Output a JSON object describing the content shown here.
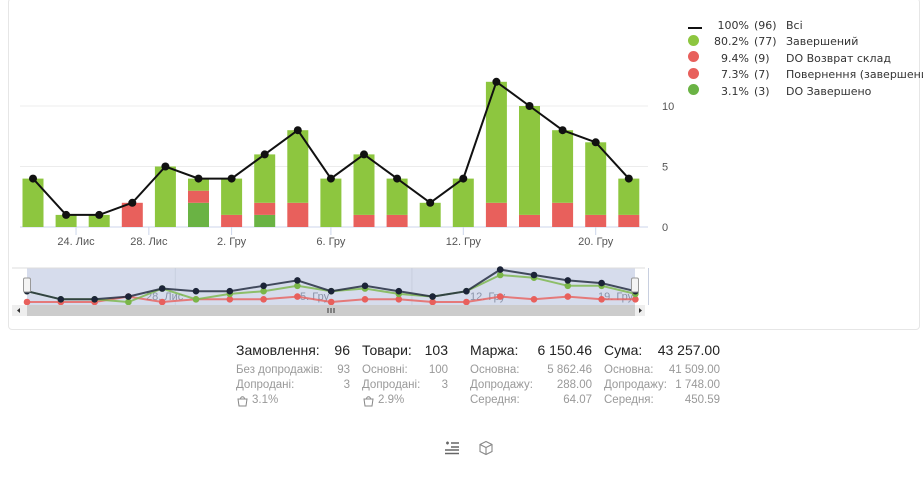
{
  "chart_data": {
    "type": "bar",
    "stacked": true,
    "x_tick_labels": [
      "24. Лис",
      "28. Лис",
      "2. Гру",
      "6. Гру",
      "12. Гру",
      "20. Гру"
    ],
    "y_tick_labels": [
      "0",
      "5",
      "10"
    ],
    "ylim": [
      0,
      13
    ],
    "grid": true,
    "legend_placement": "right",
    "series": [
      {
        "name": "Завершений",
        "color": "#8dc63f",
        "values": [
          4,
          1,
          1,
          0,
          5,
          1,
          3,
          4,
          6,
          4,
          5,
          3,
          2,
          4,
          10,
          9,
          6,
          6,
          3
        ]
      },
      {
        "name": "DO Завершено",
        "color": "#6ab344",
        "values": [
          0,
          0,
          0,
          0,
          0,
          2,
          0,
          1,
          0,
          0,
          0,
          0,
          0,
          0,
          0,
          0,
          0,
          0,
          0
        ]
      },
      {
        "name": "DO Возврат склад / Повернення (завершений)",
        "color": "#e8605c",
        "values": [
          0,
          0,
          0,
          2,
          0,
          1,
          1,
          1,
          2,
          0,
          1,
          1,
          0,
          0,
          2,
          1,
          2,
          1,
          1
        ]
      }
    ],
    "total_line": {
      "name": "Всі",
      "color": "#111111",
      "values": [
        4,
        1,
        1,
        2,
        5,
        4,
        4,
        6,
        8,
        4,
        6,
        4,
        2,
        4,
        12,
        10,
        8,
        7,
        4
      ]
    },
    "navigator_tick_labels": [
      "28. Лис",
      "5. Гру",
      "12. Гру",
      "19. Гру"
    ]
  },
  "legend": [
    {
      "pct": "100%",
      "count": "(96)",
      "label": "Всі",
      "color": "#111111",
      "type": "line"
    },
    {
      "pct": "80.2%",
      "count": "(77)",
      "label": "Завершений",
      "color": "#8dc63f",
      "type": "dot"
    },
    {
      "pct": "9.4%",
      "count": "(9)",
      "label": "DO Возврат склад",
      "color": "#e8605c",
      "type": "dot"
    },
    {
      "pct": "7.3%",
      "count": "(7)",
      "label": "Повернення (завершений)",
      "color": "#e8605c",
      "type": "dot"
    },
    {
      "pct": "3.1%",
      "count": "(3)",
      "label": "DO Завершено",
      "color": "#6ab344",
      "type": "dot"
    }
  ],
  "stats": [
    {
      "title": "Замовлення:",
      "value": "96",
      "rows": [
        [
          "Без допродажів:",
          "93"
        ],
        [
          "Допродані:",
          "3"
        ]
      ],
      "upsell": "3.1%"
    },
    {
      "title": "Товари:",
      "value": "103",
      "rows": [
        [
          "Основні:",
          "100"
        ],
        [
          "Допродані:",
          "3"
        ]
      ],
      "upsell": "2.9%"
    },
    {
      "title": "Маржа:",
      "value": "6 150.46",
      "rows": [
        [
          "Основна:",
          "5 862.46"
        ],
        [
          "Допродажу:",
          "288.00"
        ],
        [
          "Середня:",
          "64.07"
        ]
      ]
    },
    {
      "title": "Сума:",
      "value": "43 257.00",
      "rows": [
        [
          "Основна:",
          "41 509.00"
        ],
        [
          "Допродажу:",
          "1 748.00"
        ],
        [
          "Середня:",
          "450.59"
        ]
      ]
    }
  ]
}
